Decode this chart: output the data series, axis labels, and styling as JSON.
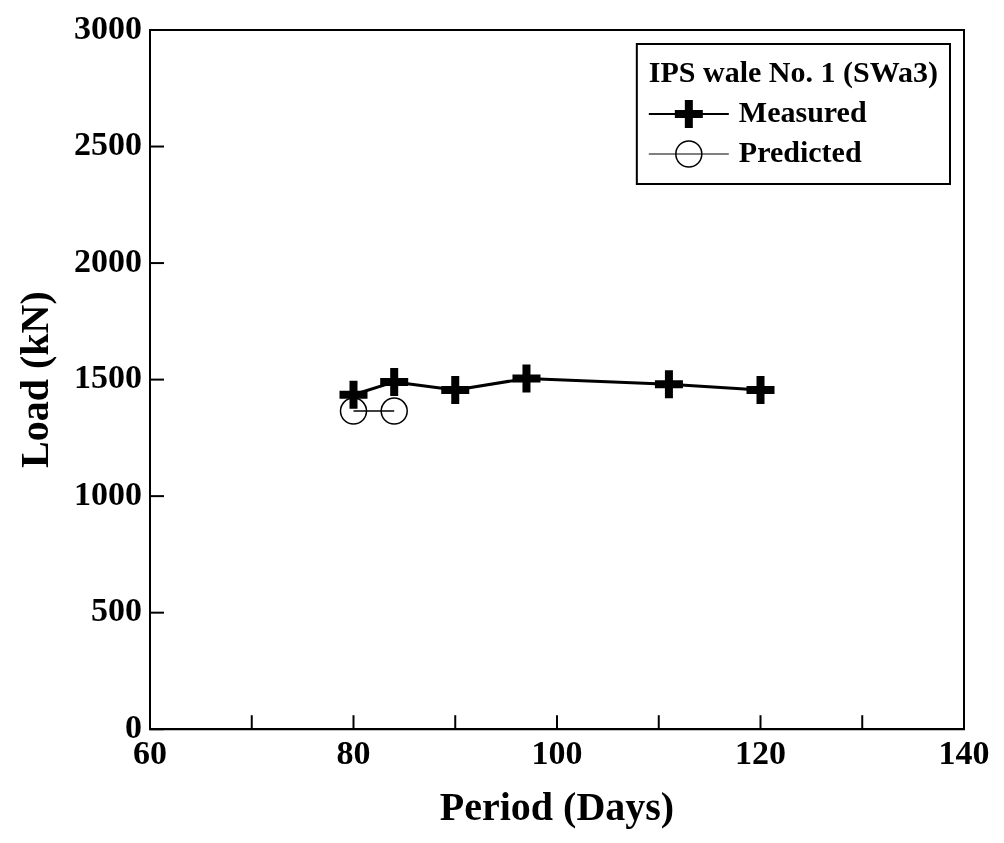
{
  "chart_data": {
    "type": "line",
    "xlabel": "Period (Days)",
    "ylabel": "Load (kN)",
    "legend_title": "IPS wale No. 1 (SWa3)",
    "xlim": [
      60,
      140
    ],
    "xticks": [
      60,
      {
        "value": 70,
        "label": null
      },
      80,
      {
        "value": 90,
        "label": null
      },
      100,
      {
        "value": 110,
        "label": null
      },
      120,
      {
        "value": 130,
        "label": null
      },
      140
    ],
    "ylim": [
      0,
      3000
    ],
    "yticks": [
      0,
      500,
      1000,
      1500,
      2000,
      2500,
      3000
    ],
    "grid": false,
    "legend": "top right",
    "series": [
      {
        "name": "Measured",
        "color": "#000000",
        "marker": "cross",
        "x": [
          80,
          84,
          90,
          97,
          111,
          120
        ],
        "values": [
          1435,
          1490,
          1455,
          1505,
          1480,
          1455
        ]
      },
      {
        "name": "Predicted",
        "color": "#000000",
        "marker": "circle",
        "x": [
          80,
          84
        ],
        "values": [
          1365,
          1365
        ]
      }
    ]
  }
}
